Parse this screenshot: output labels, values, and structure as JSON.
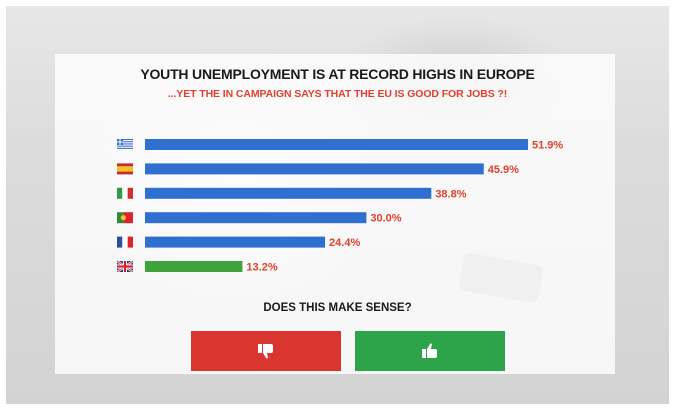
{
  "title": "YOUTH UNEMPLOYMENT IS AT RECORD HIGHS IN EUROPE",
  "subtitle": "...YET THE IN CAMPAIGN SAYS THAT THE EU IS GOOD FOR JOBS ?!",
  "question": "DOES THIS MAKE SENSE?",
  "buttons": {
    "dislike_icon": "thumbs-down-icon",
    "like_icon": "thumbs-up-icon"
  },
  "colors": {
    "bar_default": "#2e6fd0",
    "bar_highlight": "#3fa33a",
    "label": "#e0412f",
    "dislike": "#d8362f",
    "like": "#2ea44a"
  },
  "chart_data": {
    "type": "bar",
    "orientation": "horizontal",
    "categories": [
      "Greece",
      "Spain",
      "Italy",
      "Portugal",
      "France",
      "United Kingdom"
    ],
    "icons": [
      "greece-flag-icon",
      "spain-flag-icon",
      "italy-flag-icon",
      "portugal-flag-icon",
      "france-flag-icon",
      "uk-flag-icon"
    ],
    "values": [
      51.9,
      45.9,
      38.8,
      30.0,
      24.4,
      13.2
    ],
    "labels": [
      "51.9%",
      "45.9%",
      "38.8%",
      "30.0%",
      "24.4%",
      "13.2%"
    ],
    "highlight_index": 5,
    "xlim": [
      0,
      51.9
    ],
    "grid": false,
    "legend": "none"
  }
}
